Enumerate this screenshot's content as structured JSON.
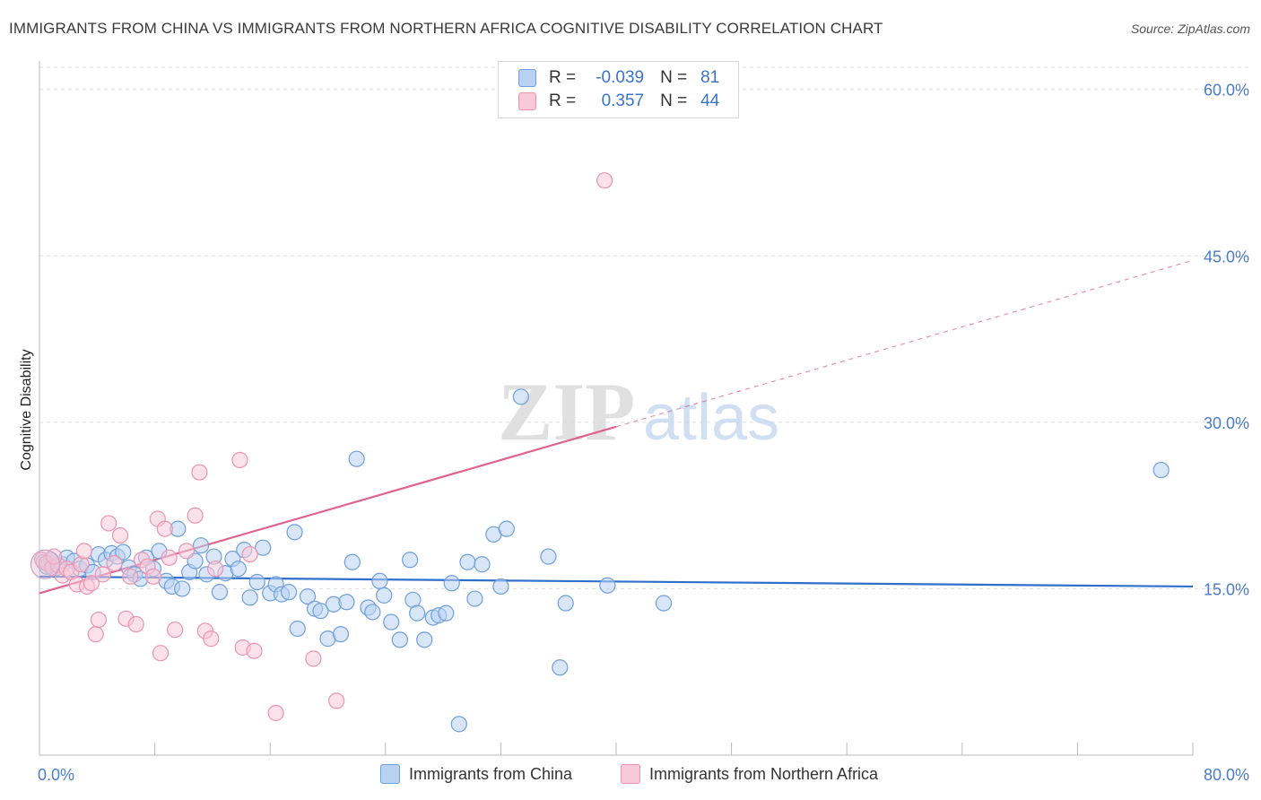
{
  "chart_data": {
    "type": "scatter",
    "title": "IMMIGRANTS FROM CHINA VS IMMIGRANTS FROM NORTHERN AFRICA COGNITIVE DISABILITY CORRELATION CHART",
    "source": "Source: ZipAtlas.com",
    "xlabel": "",
    "ylabel": "Cognitive Disability",
    "xlim": [
      0,
      80
    ],
    "ylim": [
      0,
      62
    ],
    "x_tick_labels": [
      "0.0%",
      "80.0%"
    ],
    "y_ticks": [
      15,
      30,
      45,
      60
    ],
    "y_tick_labels": [
      "15.0%",
      "30.0%",
      "45.0%",
      "60.0%"
    ],
    "watermark": {
      "part1": "ZIP",
      "part2": "atlas"
    },
    "legend": {
      "r_label": "R =",
      "n_label": "N =",
      "rows": [
        {
          "r": "-0.039",
          "n": "81"
        },
        {
          "r": "0.357",
          "n": "44"
        }
      ]
    },
    "series": [
      {
        "name": "Immigrants from China",
        "color": "#6f9fdc",
        "fill": "#b9d2f2",
        "line_color": "#2f6fcb",
        "trend": {
          "x0": 0,
          "y0": 16.1,
          "x1": 80,
          "y1": 15.2,
          "dashed_from": null
        },
        "points": [
          [
            0.3,
            17.4
          ],
          [
            0.8,
            17.6
          ],
          [
            1.2,
            16.9
          ],
          [
            1.6,
            17.2
          ],
          [
            1.9,
            17.8
          ],
          [
            2.4,
            17.5
          ],
          [
            2.8,
            16.8
          ],
          [
            3.3,
            17.1
          ],
          [
            3.7,
            16.5
          ],
          [
            4.1,
            18.1
          ],
          [
            4.6,
            17.6
          ],
          [
            5.0,
            18.2
          ],
          [
            5.4,
            17.9
          ],
          [
            5.8,
            18.3
          ],
          [
            6.2,
            16.9
          ],
          [
            6.6,
            16.3
          ],
          [
            7.0,
            15.9
          ],
          [
            7.4,
            17.8
          ],
          [
            7.9,
            16.8
          ],
          [
            8.3,
            18.4
          ],
          [
            8.8,
            15.7
          ],
          [
            9.2,
            15.2
          ],
          [
            9.6,
            20.4
          ],
          [
            9.9,
            15.0
          ],
          [
            10.4,
            16.5
          ],
          [
            10.8,
            17.5
          ],
          [
            11.2,
            18.9
          ],
          [
            11.6,
            16.3
          ],
          [
            12.1,
            17.9
          ],
          [
            12.5,
            14.7
          ],
          [
            12.9,
            16.4
          ],
          [
            13.4,
            17.7
          ],
          [
            13.8,
            16.8
          ],
          [
            14.2,
            18.5
          ],
          [
            14.6,
            14.2
          ],
          [
            15.1,
            15.6
          ],
          [
            15.5,
            18.7
          ],
          [
            16.0,
            14.6
          ],
          [
            16.4,
            15.4
          ],
          [
            16.8,
            14.5
          ],
          [
            17.3,
            14.7
          ],
          [
            17.7,
            20.1
          ],
          [
            17.9,
            11.4
          ],
          [
            18.6,
            14.3
          ],
          [
            19.1,
            13.2
          ],
          [
            19.5,
            13.0
          ],
          [
            20.0,
            10.5
          ],
          [
            20.4,
            13.6
          ],
          [
            20.9,
            10.9
          ],
          [
            21.3,
            13.8
          ],
          [
            21.7,
            17.4
          ],
          [
            22.0,
            26.7
          ],
          [
            22.8,
            13.3
          ],
          [
            23.1,
            12.9
          ],
          [
            23.6,
            15.7
          ],
          [
            23.9,
            14.4
          ],
          [
            24.4,
            12.0
          ],
          [
            25.0,
            10.4
          ],
          [
            25.7,
            17.6
          ],
          [
            25.9,
            14.0
          ],
          [
            26.2,
            12.8
          ],
          [
            26.7,
            10.4
          ],
          [
            27.3,
            12.4
          ],
          [
            27.7,
            12.6
          ],
          [
            28.2,
            12.8
          ],
          [
            28.6,
            15.5
          ],
          [
            29.1,
            2.8
          ],
          [
            29.7,
            17.4
          ],
          [
            30.2,
            14.1
          ],
          [
            30.7,
            17.2
          ],
          [
            31.5,
            19.9
          ],
          [
            32.0,
            15.2
          ],
          [
            32.4,
            20.4
          ],
          [
            33.4,
            32.3
          ],
          [
            35.3,
            17.9
          ],
          [
            36.1,
            7.9
          ],
          [
            36.5,
            13.7
          ],
          [
            39.4,
            15.3
          ],
          [
            43.3,
            13.7
          ],
          [
            77.8,
            25.7
          ],
          [
            0.5,
            17.0
          ]
        ]
      },
      {
        "name": "Immigrants from Northern Africa",
        "color": "#ec93b0",
        "fill": "#f8c9d8",
        "line_color": "#e0628e",
        "trend": {
          "x0": 0,
          "y0": 14.6,
          "x1": 80,
          "y1": 44.6,
          "dashed_from": 40
        },
        "points": [
          [
            0.2,
            17.6
          ],
          [
            0.5,
            17.3
          ],
          [
            0.9,
            16.9
          ],
          [
            1.3,
            17.1
          ],
          [
            1.6,
            16.2
          ],
          [
            1.9,
            16.8
          ],
          [
            2.2,
            16.5
          ],
          [
            2.6,
            15.4
          ],
          [
            2.9,
            17.2
          ],
          [
            3.3,
            15.2
          ],
          [
            3.6,
            15.5
          ],
          [
            3.9,
            10.9
          ],
          [
            4.1,
            12.2
          ],
          [
            4.4,
            16.3
          ],
          [
            4.8,
            20.9
          ],
          [
            5.2,
            17.3
          ],
          [
            5.6,
            19.8
          ],
          [
            6.0,
            12.3
          ],
          [
            6.3,
            16.1
          ],
          [
            6.7,
            11.8
          ],
          [
            7.1,
            17.6
          ],
          [
            7.5,
            17.0
          ],
          [
            7.9,
            16.1
          ],
          [
            8.2,
            21.3
          ],
          [
            8.4,
            9.2
          ],
          [
            8.7,
            20.4
          ],
          [
            9.0,
            17.8
          ],
          [
            9.4,
            11.3
          ],
          [
            10.2,
            18.4
          ],
          [
            10.8,
            21.6
          ],
          [
            11.1,
            25.5
          ],
          [
            11.5,
            11.2
          ],
          [
            11.9,
            10.5
          ],
          [
            12.2,
            16.8
          ],
          [
            13.9,
            26.6
          ],
          [
            14.1,
            9.7
          ],
          [
            14.6,
            18.1
          ],
          [
            14.9,
            9.4
          ],
          [
            16.4,
            3.8
          ],
          [
            19.0,
            8.7
          ],
          [
            20.6,
            4.9
          ],
          [
            39.2,
            51.8
          ],
          [
            3.1,
            18.4
          ],
          [
            1.0,
            17.9
          ]
        ]
      }
    ]
  }
}
